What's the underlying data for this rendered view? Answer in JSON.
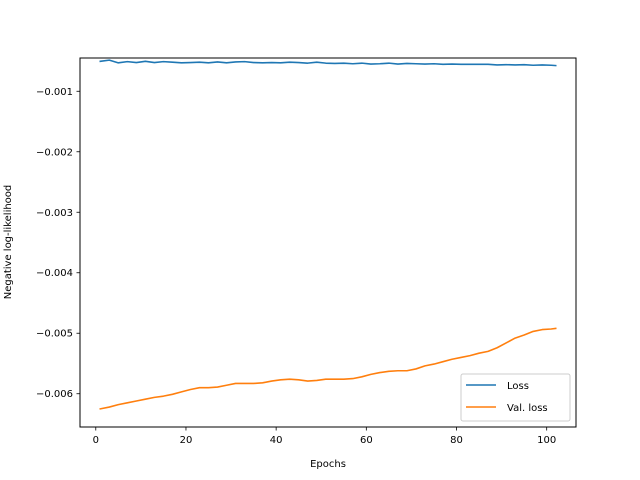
{
  "chart_data": {
    "type": "line",
    "title": "",
    "xlabel": "Epochs",
    "ylabel": "Negative log-likelihood",
    "xlim": [
      -3.5,
      106.5
    ],
    "ylim": [
      -0.00655,
      -0.00045
    ],
    "xticks": [
      0,
      20,
      40,
      60,
      80,
      100
    ],
    "xtick_labels": [
      "0",
      "20",
      "40",
      "60",
      "80",
      "100"
    ],
    "yticks": [
      -0.001,
      -0.002,
      -0.003,
      -0.004,
      -0.005,
      -0.006
    ],
    "ytick_labels": [
      "−0.001",
      "−0.002",
      "−0.003",
      "−0.004",
      "−0.005",
      "−0.006"
    ],
    "grid": false,
    "legend_position": "lower right",
    "series": [
      {
        "name": "Loss",
        "color": "#1f77b4",
        "x": [
          1,
          3,
          5,
          7,
          9,
          11,
          13,
          15,
          17,
          19,
          21,
          23,
          25,
          27,
          29,
          31,
          33,
          35,
          37,
          39,
          41,
          43,
          45,
          47,
          49,
          51,
          53,
          55,
          57,
          59,
          61,
          63,
          65,
          67,
          69,
          71,
          73,
          75,
          77,
          79,
          81,
          83,
          85,
          87,
          89,
          91,
          93,
          95,
          97,
          99,
          101,
          102
        ],
        "y": [
          -0.000505,
          -0.000485,
          -0.00053,
          -0.00051,
          -0.000525,
          -0.000505,
          -0.000525,
          -0.00051,
          -0.00052,
          -0.00053,
          -0.000525,
          -0.00052,
          -0.00053,
          -0.000515,
          -0.00053,
          -0.000515,
          -0.00051,
          -0.000525,
          -0.00053,
          -0.000525,
          -0.00053,
          -0.00052,
          -0.000525,
          -0.000535,
          -0.00052,
          -0.000535,
          -0.00054,
          -0.000535,
          -0.000545,
          -0.000535,
          -0.00055,
          -0.000545,
          -0.000535,
          -0.00055,
          -0.00054,
          -0.000545,
          -0.00055,
          -0.000545,
          -0.000555,
          -0.00055,
          -0.000555,
          -0.000555,
          -0.000555,
          -0.000555,
          -0.000565,
          -0.00056,
          -0.000565,
          -0.00056,
          -0.00057,
          -0.000565,
          -0.00057,
          -0.000575
        ]
      },
      {
        "name": "Val. loss",
        "color": "#ff7f0e",
        "x": [
          1,
          3,
          5,
          7,
          9,
          11,
          13,
          15,
          17,
          19,
          21,
          23,
          25,
          27,
          29,
          31,
          33,
          35,
          37,
          39,
          41,
          43,
          45,
          47,
          49,
          51,
          53,
          55,
          57,
          59,
          61,
          63,
          65,
          67,
          69,
          71,
          73,
          75,
          77,
          79,
          81,
          83,
          85,
          87,
          89,
          91,
          93,
          95,
          97,
          99,
          101,
          102
        ],
        "y": [
          -0.00625,
          -0.00622,
          -0.00618,
          -0.00615,
          -0.00612,
          -0.00609,
          -0.00606,
          -0.00604,
          -0.00601,
          -0.00597,
          -0.00593,
          -0.0059,
          -0.0059,
          -0.00589,
          -0.00586,
          -0.00583,
          -0.00583,
          -0.00583,
          -0.00582,
          -0.00579,
          -0.00577,
          -0.00576,
          -0.00577,
          -0.00579,
          -0.00578,
          -0.00576,
          -0.00576,
          -0.00576,
          -0.00575,
          -0.00572,
          -0.00568,
          -0.00565,
          -0.00563,
          -0.00562,
          -0.00562,
          -0.00559,
          -0.00554,
          -0.00551,
          -0.00547,
          -0.00543,
          -0.0054,
          -0.00537,
          -0.00533,
          -0.0053,
          -0.00524,
          -0.00516,
          -0.00508,
          -0.00503,
          -0.00497,
          -0.00494,
          -0.00493,
          -0.00492
        ]
      }
    ]
  }
}
